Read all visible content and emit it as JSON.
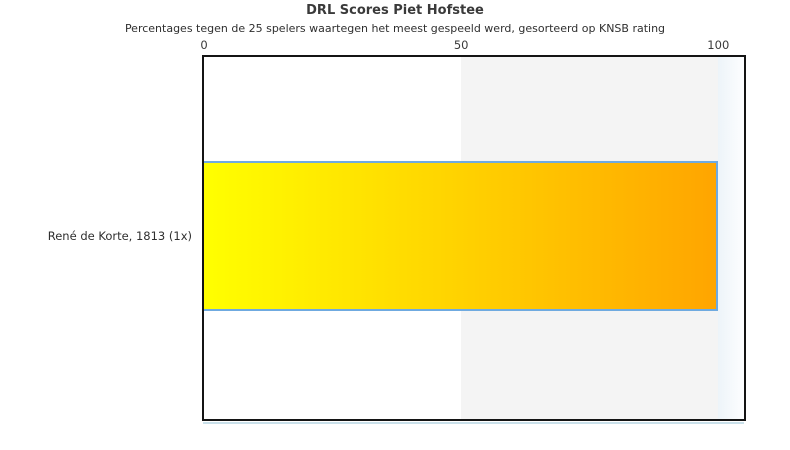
{
  "chart": {
    "title": "DRL Scores Piet Hofstee",
    "subtitle": "Percentages tegen de 25 spelers waartegen het meest gespeeld werd, gesorteerd op KNSB rating",
    "row_label": "René de Korte, 1813 (1x)"
  },
  "chart_data": {
    "type": "bar",
    "orientation": "horizontal",
    "title": "DRL Scores Piet Hofstee",
    "subtitle": "Percentages tegen de 25 spelers waartegen het meest gespeeld werd, gesorteerd op KNSB rating",
    "categories": [
      "René de Korte, 1813 (1x)"
    ],
    "values": [
      100
    ],
    "xlabel": "",
    "ylabel": "",
    "xlim": [
      0,
      105
    ],
    "xticks": [
      0,
      50,
      100
    ],
    "grid": false,
    "legend": "none",
    "plot_bands": [
      {
        "from": 50,
        "to": 100,
        "color": "#f4f4f4"
      }
    ],
    "bar_gradient": [
      "#ffff00",
      "#ffa500"
    ],
    "bar_border_color": "#6faae0",
    "plot_border_color": "#141414"
  }
}
